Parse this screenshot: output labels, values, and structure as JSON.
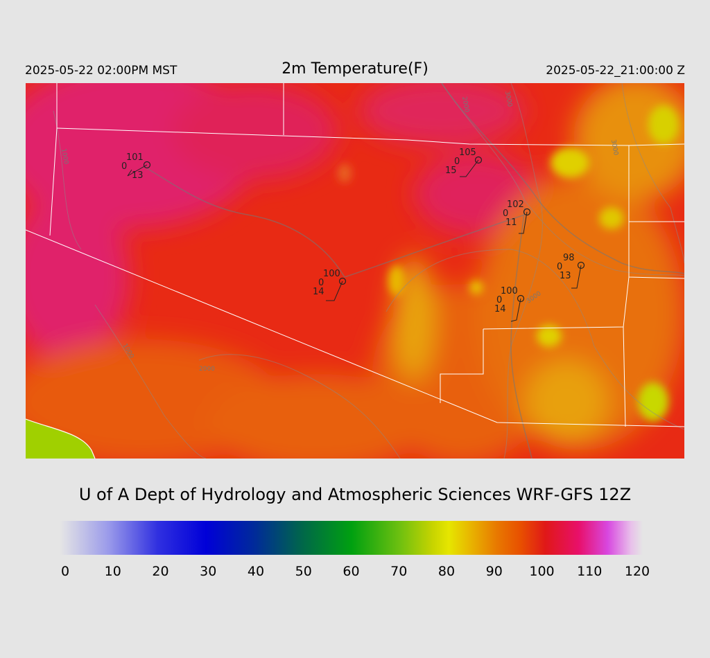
{
  "header": {
    "valid_local": "2025-05-22 02:00PM MST",
    "title": "2m Temperature(F)",
    "valid_utc": "2025-05-22_21:00:00 Z"
  },
  "credit": "U of A Dept of Hydrology and Atmospheric Sciences WRF-GFS 12Z",
  "colorbar": {
    "ticks": [
      "0",
      "10",
      "20",
      "30",
      "40",
      "50",
      "60",
      "70",
      "80",
      "90",
      "100",
      "110",
      "120"
    ]
  },
  "stations": [
    {
      "temp": "101",
      "dew": "0",
      "wind": "13"
    },
    {
      "temp": "105",
      "dew": "0",
      "wind": "15"
    },
    {
      "temp": "102",
      "dew": "0",
      "wind": "11"
    },
    {
      "temp": "100",
      "dew": "0",
      "wind": "14"
    },
    {
      "temp": "98",
      "dew": "0",
      "wind": "13"
    },
    {
      "temp": "100",
      "dew": "0",
      "wind": "14"
    }
  ],
  "contour_labels": [
    "1000",
    "2000",
    "3000"
  ],
  "colors": {
    "hot": "#e0206a",
    "warm": "#e82010",
    "mild": "#e86010",
    "cool_band": "#e8b000",
    "yellow": "#e0e000",
    "green": "#a0d000",
    "background": "#e5e5e5"
  }
}
